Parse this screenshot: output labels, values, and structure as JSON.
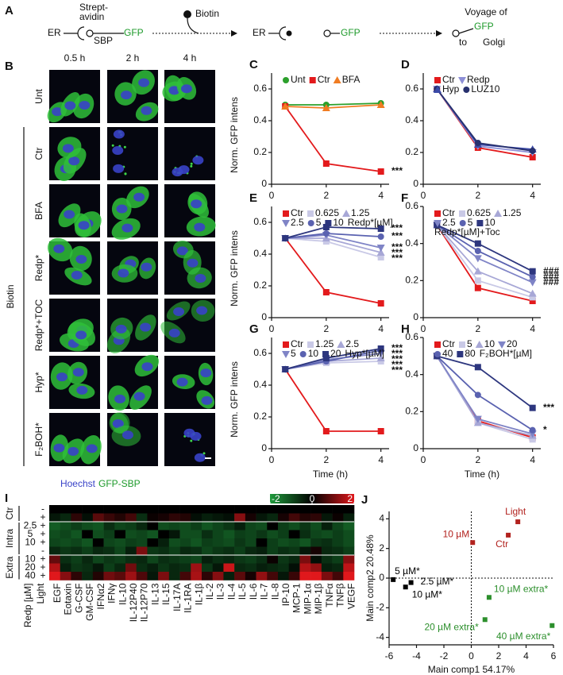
{
  "panel_a": {
    "label": "A",
    "er_1": "ER",
    "streptavidin": [
      "Strept-",
      "avidin"
    ],
    "sbp": "SBP",
    "gfp_1": "GFP",
    "biotin": "Biotin",
    "er_2": "ER",
    "gfp_2": "GFP",
    "voyage": "Voyage of",
    "gfp_3": "GFP",
    "to": "to",
    "golgi": "Golgi"
  },
  "panel_b": {
    "label": "B",
    "columns": [
      "0.5 h",
      "2 h",
      "4 h"
    ],
    "rows": [
      "Unt",
      "Ctr",
      "BFA",
      "Redp*",
      "Redp*+TOC",
      "Hyp*",
      "F₂BOH*"
    ],
    "group": "Biotin",
    "caption": [
      "Hoechst",
      "GFP-SBP"
    ]
  },
  "chart_data": [
    {
      "type": "line",
      "panel_label": "C",
      "x": [
        0.5,
        2,
        4
      ],
      "xlim": [
        0,
        4.3
      ],
      "xticks": [
        0,
        2,
        4
      ],
      "ylim": [
        0,
        0.7
      ],
      "yticks": [
        0,
        0.2,
        0.4,
        0.6
      ],
      "y_label": "Norm. GFP intens",
      "series": [
        {
          "name": "Unt",
          "color": "#2ca02c",
          "marker": "circle",
          "values": [
            0.5,
            0.5,
            0.51
          ]
        },
        {
          "name": "Ctr",
          "color": "#e31a1c",
          "marker": "square",
          "values": [
            0.49,
            0.13,
            0.08
          ]
        },
        {
          "name": "BFA",
          "color": "#f07c22",
          "marker": "triangle-up",
          "values": [
            0.49,
            0.48,
            0.5
          ]
        }
      ],
      "annotations": [
        "***"
      ]
    },
    {
      "type": "line",
      "panel_label": "D",
      "x": [
        0.5,
        2,
        4
      ],
      "xlim": [
        0,
        4.3
      ],
      "xticks": [
        0,
        2,
        4
      ],
      "ylim": [
        0,
        0.7
      ],
      "yticks": [
        0,
        0.2,
        0.4,
        0.6
      ],
      "series": [
        {
          "name": "Ctr",
          "color": "#e31a1c",
          "marker": "square",
          "values": [
            0.6,
            0.23,
            0.17
          ]
        },
        {
          "name": "Redp",
          "color": "#8d8fd6",
          "marker": "triangle-down",
          "values": [
            0.6,
            0.24,
            0.2
          ]
        },
        {
          "name": "Hyp",
          "color": "#3b4aa8",
          "marker": "triangle-up",
          "values": [
            0.6,
            0.25,
            0.22
          ]
        },
        {
          "name": "LUZ10",
          "color": "#27306e",
          "marker": "circle",
          "values": [
            0.6,
            0.26,
            0.21
          ]
        }
      ]
    },
    {
      "type": "line",
      "panel_label": "E",
      "x": [
        0.5,
        2,
        4
      ],
      "xlim": [
        0,
        4.3
      ],
      "xticks": [
        0,
        2,
        4
      ],
      "ylim": [
        0,
        0.7
      ],
      "yticks": [
        0,
        0.2,
        0.4,
        0.6
      ],
      "y_label": "Norm. GFP intens",
      "legend_title": "Redp*[µM]",
      "series": [
        {
          "name": "Ctr",
          "color": "#e31a1c",
          "marker": "square",
          "values": [
            0.5,
            0.16,
            0.09
          ]
        },
        {
          "name": "0.625",
          "color": "#c9c9e6",
          "marker": "square",
          "values": [
            0.5,
            0.48,
            0.38
          ]
        },
        {
          "name": "1.25",
          "color": "#a7a7d6",
          "marker": "triangle-up",
          "values": [
            0.5,
            0.5,
            0.41
          ]
        },
        {
          "name": "2.5",
          "color": "#7f84c6",
          "marker": "triangle-down",
          "values": [
            0.5,
            0.52,
            0.44
          ]
        },
        {
          "name": "5",
          "color": "#5a62b0",
          "marker": "circle",
          "values": [
            0.5,
            0.53,
            0.51
          ]
        },
        {
          "name": "10",
          "color": "#2d367e",
          "marker": "square",
          "values": [
            0.5,
            0.57,
            0.56
          ]
        }
      ],
      "annotations": [
        "***",
        "***",
        "***",
        "***",
        "***"
      ]
    },
    {
      "type": "line",
      "panel_label": "F",
      "x": [
        0.5,
        2,
        4
      ],
      "xlim": [
        0,
        4.3
      ],
      "xticks": [
        0,
        2,
        4
      ],
      "ylim": [
        0,
        0.6
      ],
      "yticks": [
        0,
        0.2,
        0.4,
        0.6
      ],
      "legend_title": "Redp*[µM]+Toc",
      "series": [
        {
          "name": "Ctr",
          "color": "#e31a1c",
          "marker": "square",
          "values": [
            0.5,
            0.16,
            0.09
          ]
        },
        {
          "name": "0.625",
          "color": "#c9c9e6",
          "marker": "square",
          "values": [
            0.5,
            0.2,
            0.11
          ]
        },
        {
          "name": "1.25",
          "color": "#a7a7d6",
          "marker": "triangle-up",
          "values": [
            0.5,
            0.25,
            0.13
          ]
        },
        {
          "name": "2.5",
          "color": "#7f84c6",
          "marker": "triangle-down",
          "values": [
            0.5,
            0.32,
            0.19
          ]
        },
        {
          "name": "5",
          "color": "#5a62b0",
          "marker": "circle",
          "values": [
            0.5,
            0.36,
            0.22
          ]
        },
        {
          "name": "10",
          "color": "#2d367e",
          "marker": "square",
          "values": [
            0.5,
            0.4,
            0.25
          ]
        }
      ],
      "annotations": [
        "###",
        "###",
        "###"
      ]
    },
    {
      "type": "line",
      "panel_label": "G",
      "x": [
        0.5,
        2,
        4
      ],
      "xlim": [
        0,
        4.3
      ],
      "xticks": [
        0,
        2,
        4
      ],
      "ylim": [
        0,
        0.7
      ],
      "yticks": [
        0,
        0.2,
        0.4,
        0.6
      ],
      "y_label": "Norm. GFP intens",
      "x_label": "Time (h)",
      "legend_title": "Hyp*[µM]",
      "series": [
        {
          "name": "Ctr",
          "color": "#e31a1c",
          "marker": "square",
          "values": [
            0.5,
            0.11,
            0.11
          ]
        },
        {
          "name": "1.25",
          "color": "#c9c9e6",
          "marker": "square",
          "values": [
            0.5,
            0.54,
            0.55
          ]
        },
        {
          "name": "2.5",
          "color": "#a7a7d6",
          "marker": "triangle-up",
          "values": [
            0.5,
            0.55,
            0.57
          ]
        },
        {
          "name": "5",
          "color": "#7f84c6",
          "marker": "triangle-down",
          "values": [
            0.5,
            0.56,
            0.6
          ]
        },
        {
          "name": "10",
          "color": "#5a62b0",
          "marker": "circle",
          "values": [
            0.5,
            0.55,
            0.62
          ]
        },
        {
          "name": "20",
          "color": "#2d367e",
          "marker": "square",
          "values": [
            0.5,
            0.57,
            0.63
          ]
        }
      ],
      "annotations": [
        "***",
        "***",
        "***",
        "***",
        "***"
      ]
    },
    {
      "type": "line",
      "panel_label": "H",
      "x": [
        0.5,
        2,
        4
      ],
      "xlim": [
        0,
        4.3
      ],
      "xticks": [
        0,
        2,
        4
      ],
      "ylim": [
        0,
        0.6
      ],
      "yticks": [
        0,
        0.2,
        0.4,
        0.6
      ],
      "x_label": "Time (h)",
      "legend_title": "F₂BOH*[µM]",
      "series": [
        {
          "name": "Ctr",
          "color": "#e31a1c",
          "marker": "square",
          "values": [
            0.5,
            0.15,
            0.06
          ]
        },
        {
          "name": "5",
          "color": "#c9c9e6",
          "marker": "square",
          "values": [
            0.5,
            0.14,
            0.05
          ]
        },
        {
          "name": "10",
          "color": "#a7a7d6",
          "marker": "triangle-up",
          "values": [
            0.5,
            0.14,
            0.07
          ]
        },
        {
          "name": "20",
          "color": "#7f84c6",
          "marker": "triangle-down",
          "values": [
            0.5,
            0.16,
            0.08
          ]
        },
        {
          "name": "40",
          "color": "#5a62b0",
          "marker": "circle",
          "values": [
            0.5,
            0.29,
            0.1
          ]
        },
        {
          "name": "80",
          "color": "#2d367e",
          "marker": "square",
          "values": [
            0.5,
            0.44,
            0.22
          ]
        }
      ],
      "annotations": [
        "***",
        "*"
      ]
    },
    {
      "type": "heatmap",
      "panel_label": "I",
      "columns": [
        "EGF",
        "Eotaxin",
        "G-CSF",
        "GM-CSF",
        "IFNα2",
        "IFNγ",
        "IL-10",
        "IL-12P40",
        "IL-12P70",
        "IL-13",
        "IL-15",
        "IL-17A",
        "IL-1RA",
        "IL-1β",
        "IL-2",
        "IL-3",
        "IL-4",
        "IL-5",
        "IL-6",
        "IL-7",
        "IL-8",
        "IP-10",
        "MCP-1",
        "MIP-1α",
        "MIP-1β",
        "TNFα",
        "TNFβ",
        "VEGF"
      ],
      "row_header": [
        "Redp [µM]",
        "Light"
      ],
      "rows": [
        {
          "redp": null,
          "light": "-"
        },
        {
          "redp": null,
          "light": "+"
        },
        {
          "redp": "2.5",
          "light": "+"
        },
        {
          "redp": "5",
          "light": "+"
        },
        {
          "redp": "10",
          "light": "+"
        },
        {
          "redp": null,
          "light": "-"
        },
        {
          "redp": "10",
          "light": "+"
        },
        {
          "redp": "20",
          "light": "+"
        },
        {
          "redp": "40",
          "light": "+"
        }
      ],
      "groups": [
        "Ctr",
        "Intra",
        "Extra"
      ],
      "values": [
        [
          0,
          0,
          0,
          0,
          0,
          0,
          0,
          0,
          0,
          0,
          0,
          0,
          0,
          0,
          0,
          0,
          0,
          0,
          0,
          0,
          0,
          0,
          0,
          0,
          0,
          0,
          0,
          0
        ],
        [
          -0.3,
          -0.5,
          0.4,
          -0.2,
          0.8,
          0.5,
          0.3,
          0.6,
          -0.6,
          0.1,
          0.2,
          0.4,
          0.3,
          -0.2,
          -0.4,
          -0.3,
          -0.2,
          1.2,
          0.2,
          -0.3,
          -0.5,
          0.2,
          0.6,
          0.3,
          0.4,
          -0.3,
          0.1,
          -0.4
        ],
        [
          -1.2,
          -1,
          -0.8,
          -1,
          -1.1,
          -0.6,
          -0.9,
          -0.8,
          -0.5,
          0,
          -1,
          -0.9,
          -1,
          -0.8,
          -1.1,
          -0.9,
          -0.7,
          -0.4,
          -0.9,
          -1,
          0,
          -0.8,
          -1,
          -0.7,
          -1,
          -0.4,
          -0.9,
          -1.2
        ],
        [
          -1,
          -0.9,
          -1.1,
          0,
          -1,
          -0.8,
          0,
          -1,
          -0.9,
          -1.1,
          0,
          -0.3,
          -1,
          -1,
          -0.6,
          -0.9,
          -1.1,
          -0.8,
          -0.9,
          -0.7,
          -1,
          -0.8,
          0,
          -0.6,
          -0.9,
          -1,
          -0.8,
          -1
        ],
        [
          -0.9,
          -1,
          -0.9,
          -1.1,
          0,
          -0.9,
          -1,
          -0.8,
          -0.9,
          0,
          -0.4,
          -1,
          -0.9,
          -1.1,
          -0.8,
          -0.9,
          -1,
          -0.7,
          -0.9,
          0,
          -0.8,
          -1,
          -0.9,
          -1.1,
          -0.7,
          -0.6,
          -0.8,
          -1
        ],
        [
          -0.5,
          -0.7,
          -0.6,
          -0.8,
          -0.5,
          -0.6,
          -0.9,
          -0.4,
          1.1,
          -0.7,
          -0.6,
          -0.8,
          -0.5,
          -0.6,
          -0.9,
          -0.7,
          -0.6,
          -0.8,
          -0.5,
          -0.4,
          -0.8,
          -0.6,
          -0.7,
          -0.3,
          0.2,
          -0.5,
          -0.6,
          -0.8
        ],
        [
          0.9,
          -0.6,
          -0.8,
          -0.5,
          -0.9,
          -0.7,
          -0.8,
          -0.6,
          -0.5,
          -0.9,
          -0.6,
          -0.7,
          -0.8,
          -0.9,
          -0.4,
          -0.6,
          -0.5,
          -0.7,
          -0.8,
          -0.6,
          0.1,
          -0.7,
          -0.5,
          1.1,
          -0.2,
          -0.6,
          -0.8,
          1.2
        ],
        [
          1.6,
          -0.4,
          -0.7,
          -0.6,
          -0.3,
          -0.8,
          -0.5,
          1,
          -0.6,
          -0.4,
          -0.7,
          -0.5,
          -0.6,
          1.4,
          -0.7,
          -0.3,
          1.8,
          -0.5,
          -0.6,
          -0.4,
          -0.5,
          -0.6,
          -0.2,
          1.6,
          1.3,
          -0.4,
          -0.5,
          1.7
        ],
        [
          2,
          1.2,
          0.4,
          -0.5,
          0.3,
          1,
          0.8,
          1.4,
          0.7,
          -0.3,
          1.1,
          -0.5,
          0.6,
          1.5,
          0.4,
          1.2,
          -0.4,
          0.8,
          0.2,
          1.3,
          0.6,
          -0.3,
          0.5,
          2,
          2,
          1.1,
          0.6,
          2
        ]
      ],
      "colorbar": {
        "lim": [
          -2,
          2
        ],
        "ticks": [
          -2,
          0,
          2
        ],
        "colors": [
          "#1f9a3c",
          "#000000",
          "#e0181c"
        ]
      }
    },
    {
      "type": "scatter",
      "panel_label": "J",
      "x": [
        3.4,
        2.7,
        0.1,
        -5.7,
        -4.4,
        -4.8,
        1.3,
        1,
        5.9
      ],
      "values": [
        3.8,
        2.9,
        2.4,
        -0.1,
        -0.3,
        -0.6,
        -1.3,
        -2.8,
        -3.2
      ],
      "point_labels": [
        "Light",
        "Ctr",
        "10 µM",
        "5 µM*",
        "2.5 µM*",
        "10 µM*",
        "10 µM extra*",
        "20 µM extra*",
        "40 µM extra*"
      ],
      "point_colors": [
        "#b2221e",
        "#b2221e",
        "#b2221e",
        "#000000",
        "#000000",
        "#000000",
        "#2c8f2c",
        "#2c8f2c",
        "#2c8f2c"
      ],
      "xlim": [
        -6,
        6
      ],
      "xticks": [
        -6,
        -4,
        -2,
        0,
        2,
        4,
        6
      ],
      "ylim": [
        -4.5,
        4.5
      ],
      "yticks": [
        -4,
        -2,
        0,
        2,
        4
      ],
      "x_label": "Main comp1 54.17%",
      "y_label": "Main comp2 20.48%"
    }
  ]
}
